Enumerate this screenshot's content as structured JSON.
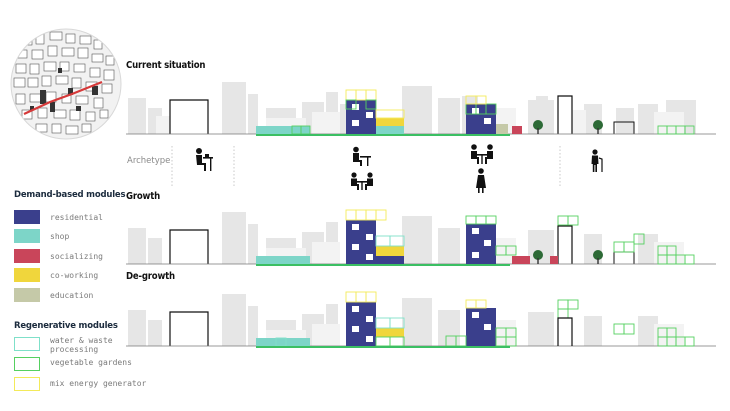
{
  "sections": {
    "current": "Current situation",
    "growth": "Growth",
    "degrowth": "De-growth"
  },
  "archetype_label": "Archetype",
  "legend": {
    "demand_title": "Demand-based modules",
    "demand_items": [
      {
        "label": "residential",
        "color": "#3a3f8c"
      },
      {
        "label": "shop",
        "color": "#7dd5c8"
      },
      {
        "label": "socializing",
        "color": "#c9455a"
      },
      {
        "label": "co-working",
        "color": "#f0d63c"
      },
      {
        "label": "education",
        "color": "#c5c9a8"
      }
    ],
    "regen_title": "Regenerative modules",
    "regen_items": [
      {
        "label": "water & waste\nprocessing",
        "color": "#7fe0c9"
      },
      {
        "label": "vegetable gardens",
        "color": "#55d060"
      },
      {
        "label": "mix energy generator",
        "color": "#f3ea5a"
      }
    ]
  },
  "icons": {
    "map": "district-map-icon",
    "worker": "person-at-desk-icon",
    "students": "group-at-table-icon",
    "meeting": "people-meeting-icon",
    "elder": "elderly-person-with-cane-icon",
    "tree": "tree-icon"
  }
}
